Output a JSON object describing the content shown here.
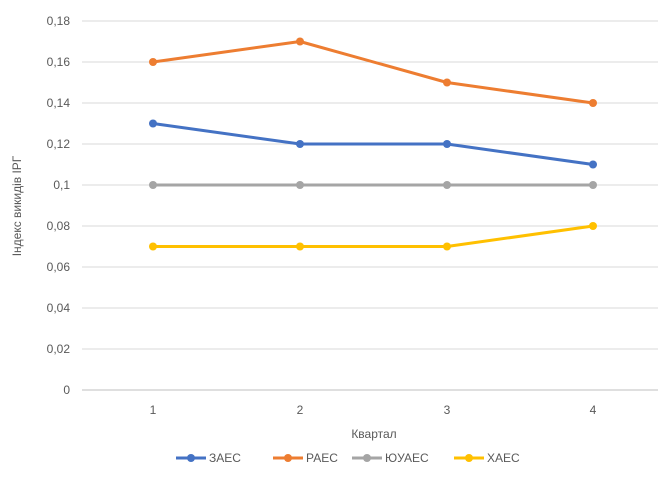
{
  "chart_data": {
    "type": "line",
    "x": [
      1,
      2,
      3,
      4
    ],
    "xlabel": "Квартал",
    "ylabel": "Індекс викидів ІРГ",
    "ylim": [
      0,
      0.18
    ],
    "yticks": [
      "0",
      "0,02",
      "0,04",
      "0,06",
      "0,08",
      "0,1",
      "0,12",
      "0,14",
      "0,16",
      "0,18"
    ],
    "xticks": [
      "1",
      "2",
      "3",
      "4"
    ],
    "grid": true,
    "legend_position": "bottom",
    "series": [
      {
        "name": "ЗАЕС",
        "color": "#4472C4",
        "values": [
          0.13,
          0.12,
          0.12,
          0.11
        ]
      },
      {
        "name": "РАЕС",
        "color": "#ED7D31",
        "values": [
          0.16,
          0.17,
          0.15,
          0.14
        ]
      },
      {
        "name": "ЮУАЕС",
        "color": "#A5A5A5",
        "values": [
          0.1,
          0.1,
          0.1,
          0.1
        ]
      },
      {
        "name": "ХАЕС",
        "color": "#FFC000",
        "values": [
          0.07,
          0.07,
          0.07,
          0.08
        ]
      }
    ]
  }
}
